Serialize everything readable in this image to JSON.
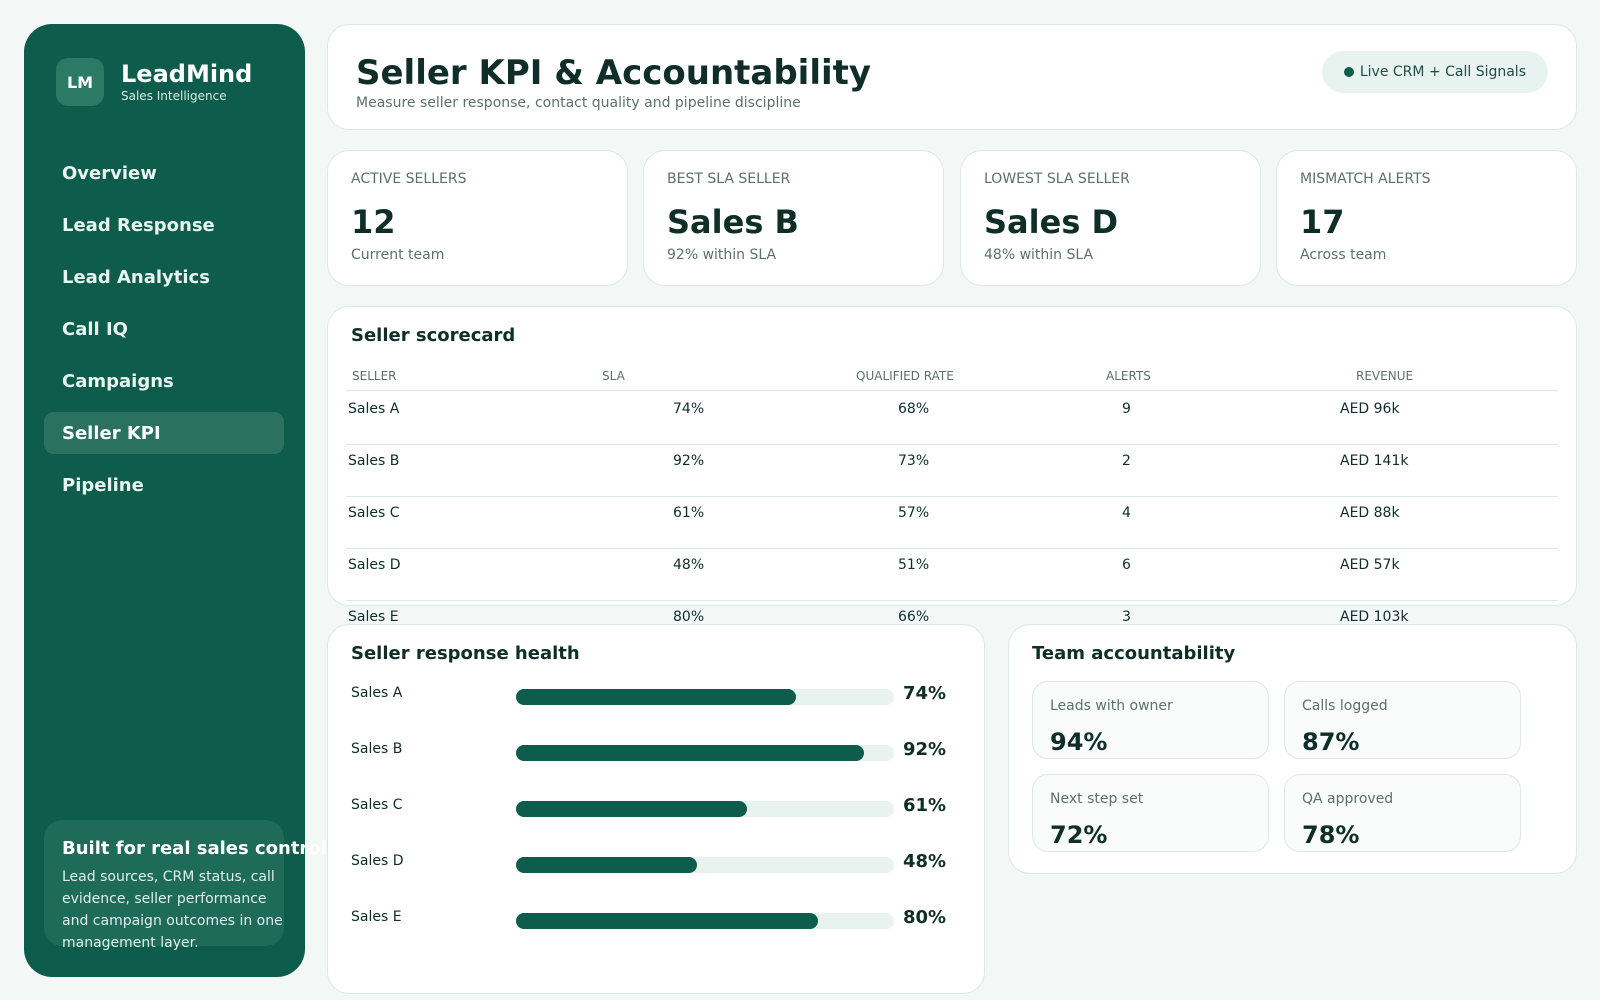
{
  "brand": {
    "logo": "LM",
    "name": "LeadMind",
    "subtitle": "Sales Intelligence"
  },
  "nav": {
    "items": [
      {
        "label": "Overview"
      },
      {
        "label": "Lead Response"
      },
      {
        "label": "Lead Analytics"
      },
      {
        "label": "Call IQ"
      },
      {
        "label": "Campaigns"
      },
      {
        "label": "Seller KPI",
        "active": true
      },
      {
        "label": "Pipeline"
      }
    ]
  },
  "promo": {
    "title": "Built for real sales control",
    "text": "Lead sources, CRM status, call evidence, seller performance and campaign outcomes in one management layer."
  },
  "header": {
    "title": "Seller KPI & Accountability",
    "subtitle": "Measure seller response, contact quality and pipeline discipline",
    "live_badge": "Live CRM + Call Signals"
  },
  "kpis": [
    {
      "label": "ACTIVE SELLERS",
      "value": "12",
      "sub": "Current team"
    },
    {
      "label": "BEST SLA SELLER",
      "value": "Sales B",
      "sub": "92% within SLA"
    },
    {
      "label": "LOWEST SLA SELLER",
      "value": "Sales D",
      "sub": "48% within SLA"
    },
    {
      "label": "MISMATCH ALERTS",
      "value": "17",
      "sub": "Across team"
    }
  ],
  "scorecard": {
    "title": "Seller scorecard",
    "columns": [
      "SELLER",
      "SLA",
      "QUALIFIED RATE",
      "ALERTS",
      "REVENUE"
    ],
    "rows": [
      {
        "seller": "Sales A",
        "sla": "74%",
        "qualified": "68%",
        "alerts": "9",
        "revenue": "AED 96k"
      },
      {
        "seller": "Sales B",
        "sla": "92%",
        "qualified": "73%",
        "alerts": "2",
        "revenue": "AED 141k"
      },
      {
        "seller": "Sales C",
        "sla": "61%",
        "qualified": "57%",
        "alerts": "4",
        "revenue": "AED 88k"
      },
      {
        "seller": "Sales D",
        "sla": "48%",
        "qualified": "51%",
        "alerts": "6",
        "revenue": "AED 57k"
      },
      {
        "seller": "Sales E",
        "sla": "80%",
        "qualified": "66%",
        "alerts": "3",
        "revenue": "AED 103k"
      }
    ]
  },
  "health": {
    "title": "Seller response health",
    "bars": [
      {
        "label": "Sales A",
        "value": 74,
        "display": "74%"
      },
      {
        "label": "Sales B",
        "value": 92,
        "display": "92%"
      },
      {
        "label": "Sales C",
        "value": 61,
        "display": "61%"
      },
      {
        "label": "Sales D",
        "value": 48,
        "display": "48%"
      },
      {
        "label": "Sales E",
        "value": 80,
        "display": "80%"
      }
    ]
  },
  "accountability": {
    "title": "Team accountability",
    "tiles": [
      {
        "label": "Leads with owner",
        "value": "94%"
      },
      {
        "label": "Calls logged",
        "value": "87%"
      },
      {
        "label": "Next step set",
        "value": "72%"
      },
      {
        "label": "QA approved",
        "value": "78%"
      }
    ]
  },
  "colors": {
    "primary": "#0e5c4c",
    "background": "#f3f8f6",
    "track": "#e8f2ee"
  }
}
